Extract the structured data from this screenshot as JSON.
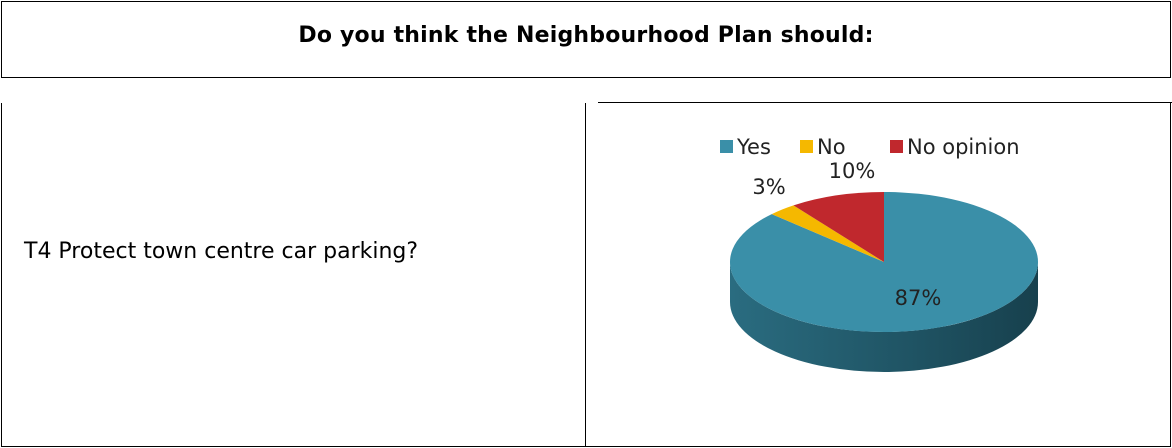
{
  "table": {
    "header": "Do you think the Neighbourhood Plan should:",
    "question": "T4 Protect town centre car parking?"
  },
  "chart_data": {
    "type": "pie",
    "style": "3d",
    "categories": [
      "Yes",
      "No",
      "No opinion"
    ],
    "values": [
      87,
      3,
      10
    ],
    "labels": [
      "87%",
      "3%",
      "10%"
    ],
    "colors": [
      "#3A8FA8",
      "#F5B800",
      "#C0282D"
    ],
    "legend": "top"
  }
}
